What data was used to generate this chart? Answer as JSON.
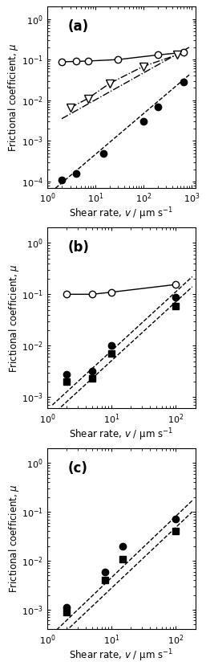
{
  "panels": [
    {
      "label": "(a)",
      "xlim": [
        1.2,
        1200
      ],
      "ylim": [
        7e-05,
        2.0
      ],
      "yticks": [
        0.0001,
        0.001,
        0.01,
        0.1,
        1.0
      ],
      "xticks": [
        1,
        10,
        100,
        1000
      ],
      "series": [
        {
          "x": [
            2,
            4,
            7,
            30,
            200,
            700
          ],
          "y": [
            0.088,
            0.09,
            0.092,
            0.1,
            0.13,
            0.15
          ],
          "marker": "o",
          "filled": false,
          "linestyle": "-",
          "linewidth": 1.0,
          "markersize": 6,
          "zorder": 4
        },
        {
          "x": [
            3,
            7,
            20,
            100,
            500
          ],
          "y": [
            0.0065,
            0.011,
            0.026,
            0.068,
            0.13
          ],
          "marker": "v",
          "filled": false,
          "linestyle": "-.",
          "linewidth": 1.0,
          "markersize": 7,
          "zorder": 4
        },
        {
          "x": [
            2,
            4,
            15,
            100,
            200,
            700
          ],
          "y": [
            0.00011,
            0.00016,
            0.0005,
            0.003,
            0.007,
            0.028
          ],
          "marker": "o",
          "filled": true,
          "linestyle": "none",
          "linewidth": 1.0,
          "markersize": 6,
          "zorder": 4
        }
      ],
      "fit_lines": [
        {
          "x": [
            1.2,
            900
          ],
          "y": [
            5.5e-05,
            0.042
          ],
          "linestyle": "--",
          "linewidth": 1.0,
          "zorder": 2
        },
        {
          "x": [
            2.0,
            900
          ],
          "y": [
            0.0035,
            0.2
          ],
          "linestyle": "-.",
          "linewidth": 1.0,
          "zorder": 2
        }
      ]
    },
    {
      "label": "(b)",
      "xlim": [
        1.2,
        200
      ],
      "ylim": [
        0.0006,
        2.0
      ],
      "yticks": [
        0.001,
        0.01,
        0.1,
        1.0
      ],
      "xticks": [
        1,
        10,
        100
      ],
      "series": [
        {
          "x": [
            2,
            5,
            10,
            100
          ],
          "y": [
            0.1,
            0.1,
            0.11,
            0.155
          ],
          "marker": "o",
          "filled": false,
          "linestyle": "-",
          "linewidth": 1.0,
          "markersize": 6,
          "zorder": 4
        },
        {
          "x": [
            2,
            5,
            10,
            100
          ],
          "y": [
            0.0028,
            0.0032,
            0.01,
            0.088
          ],
          "marker": "o",
          "filled": true,
          "linestyle": "none",
          "linewidth": 1.0,
          "markersize": 6,
          "zorder": 4
        },
        {
          "x": [
            2,
            5,
            10,
            100
          ],
          "y": [
            0.002,
            0.0023,
            0.007,
            0.058
          ],
          "marker": "s",
          "filled": true,
          "linestyle": "none",
          "linewidth": 1.0,
          "markersize": 6,
          "zorder": 4
        }
      ],
      "fit_lines": [
        {
          "x": [
            1.2,
            180
          ],
          "y": [
            0.0007,
            0.22
          ],
          "linestyle": "--",
          "linewidth": 1.0,
          "zorder": 2
        },
        {
          "x": [
            1.2,
            180
          ],
          "y": [
            0.00045,
            0.14
          ],
          "linestyle": "--",
          "linewidth": 1.0,
          "zorder": 2
        }
      ]
    },
    {
      "label": "(c)",
      "xlim": [
        1.2,
        200
      ],
      "ylim": [
        0.0004,
        2.0
      ],
      "yticks": [
        0.001,
        0.01,
        0.1,
        1.0
      ],
      "xticks": [
        1,
        10,
        100
      ],
      "series": [
        {
          "x": [
            2,
            8,
            15,
            100
          ],
          "y": [
            0.0011,
            0.006,
            0.02,
            0.072
          ],
          "marker": "o",
          "filled": true,
          "linestyle": "none",
          "linewidth": 1.0,
          "markersize": 6,
          "zorder": 4
        },
        {
          "x": [
            2,
            8,
            15,
            100
          ],
          "y": [
            0.0009,
            0.004,
            0.011,
            0.04
          ],
          "marker": "s",
          "filled": true,
          "linestyle": "none",
          "linewidth": 1.0,
          "markersize": 6,
          "zorder": 4
        }
      ],
      "fit_lines": [
        {
          "x": [
            1.2,
            180
          ],
          "y": [
            0.00032,
            0.17
          ],
          "linestyle": "--",
          "linewidth": 1.0,
          "zorder": 2
        },
        {
          "x": [
            1.2,
            180
          ],
          "y": [
            0.0002,
            0.1
          ],
          "linestyle": "--",
          "linewidth": 1.0,
          "zorder": 2
        }
      ]
    }
  ],
  "ylabel": "Frictional coefficient, $\\mu$",
  "xlabel": "Shear rate, $\\it{v}$ / μm s$^{-1}$",
  "figure_width": 2.57,
  "figure_height": 8.34,
  "dpi": 100
}
